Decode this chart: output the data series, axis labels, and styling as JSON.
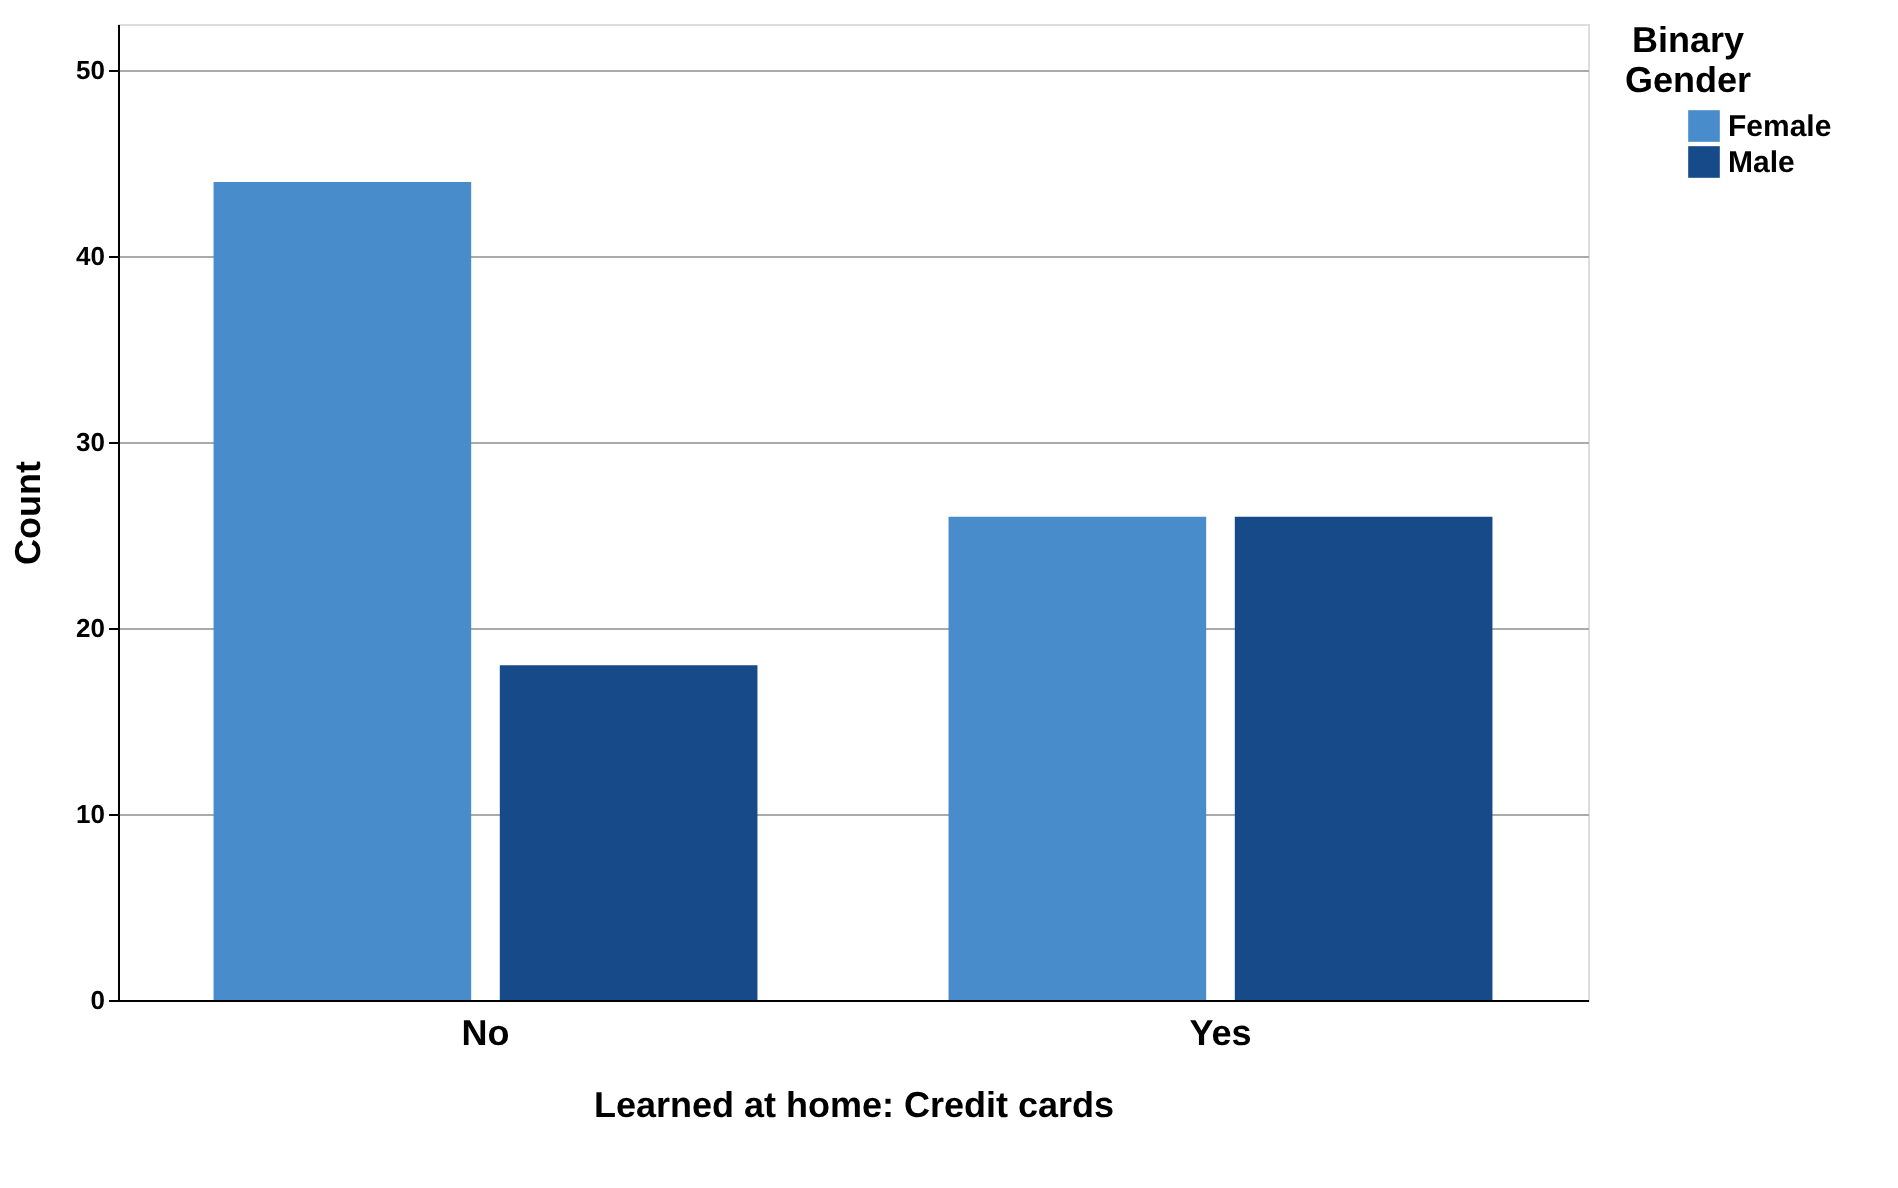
{
  "chart_data": {
    "type": "bar",
    "xlabel": "Learned at home: Credit cards",
    "ylabel": "Count",
    "legend_title": "Binary Gender",
    "categories": [
      "No",
      "Yes"
    ],
    "series": [
      {
        "name": "Female",
        "color": "#488ccb",
        "values": [
          44,
          26
        ]
      },
      {
        "name": "Male",
        "color": "#174a89",
        "values": [
          18,
          26
        ]
      }
    ],
    "ylim": [
      0,
      52.5
    ],
    "yticks": [
      0,
      10,
      20,
      30,
      40,
      50
    ],
    "grid": "y",
    "legend": "right"
  }
}
